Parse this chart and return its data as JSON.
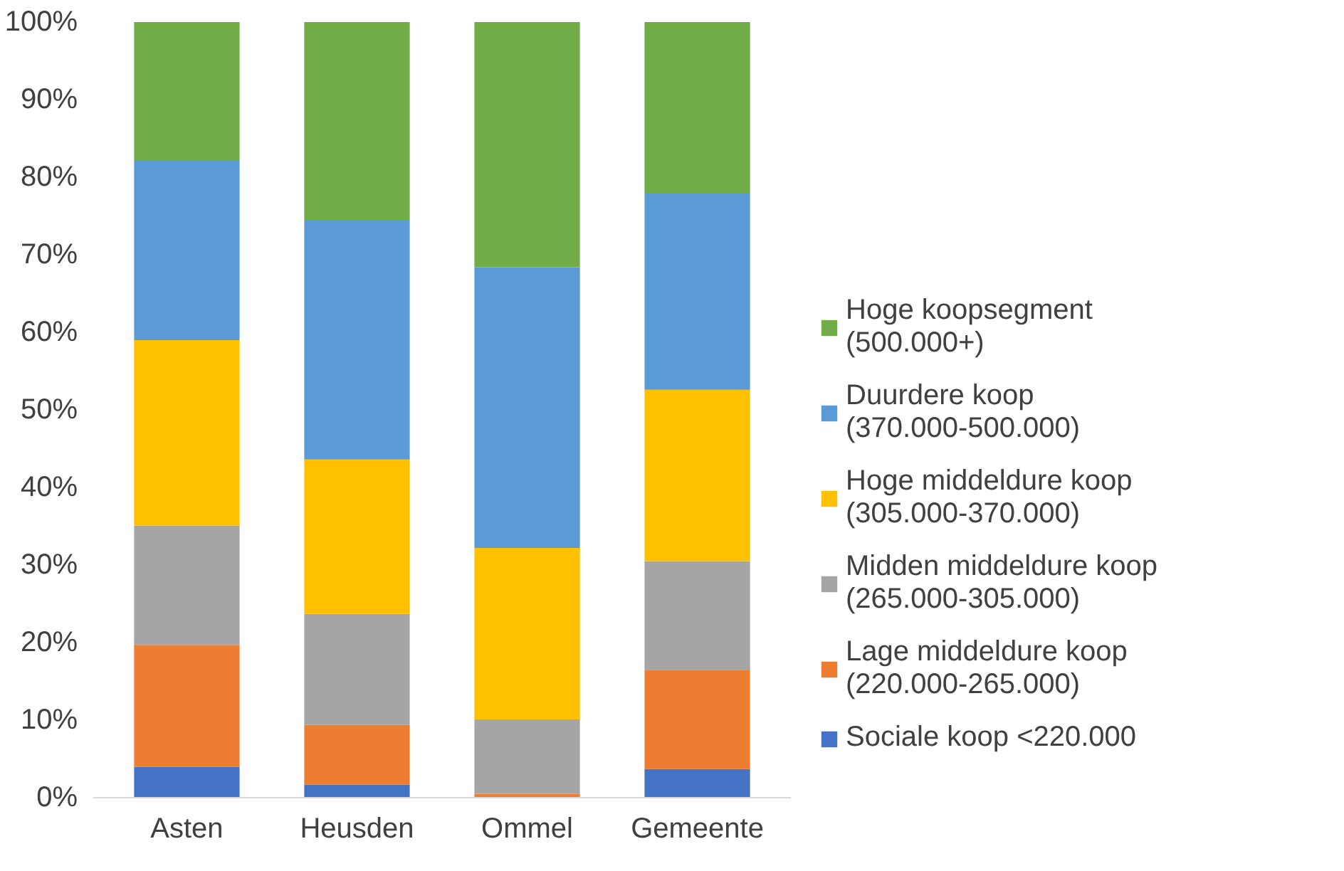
{
  "chart_data": {
    "type": "bar",
    "stacked": true,
    "categories": [
      "Asten",
      "Heusden",
      "Ommel",
      "Gemeente"
    ],
    "series": [
      {
        "name": "Sociale koop <220.000",
        "color": "#4472c4",
        "values": [
          4.0,
          1.7,
          0,
          3.7
        ]
      },
      {
        "name": "Lage middeldure koop (220.000-265.000)",
        "color": "#ed7d31",
        "values": [
          15.7,
          7.7,
          0.5,
          12.8
        ]
      },
      {
        "name": "Midden middeldure koop (265.000-305.000)",
        "color": "#a5a5a5",
        "values": [
          15.4,
          14.3,
          9.6,
          14.0
        ]
      },
      {
        "name": "Hoge middeldure koop (305.000-370.000)",
        "color": "#ffc000",
        "values": [
          23.9,
          19.9,
          22.1,
          22.1
        ]
      },
      {
        "name": "Duurdere koop (370.000-500.000)",
        "color": "#5b9bd5",
        "values": [
          23.2,
          30.8,
          36.2,
          25.3
        ]
      },
      {
        "name": "Hoge koopsegment (500.000+)",
        "color": "#70ad47",
        "values": [
          17.8,
          25.6,
          31.6,
          22.1
        ]
      }
    ],
    "ylim": [
      0,
      100
    ],
    "yticks": [
      {
        "value": 0,
        "label": "0%"
      },
      {
        "value": 10,
        "label": "10%"
      },
      {
        "value": 20,
        "label": "20%"
      },
      {
        "value": 30,
        "label": "30%"
      },
      {
        "value": 40,
        "label": "40%"
      },
      {
        "value": 50,
        "label": "50%"
      },
      {
        "value": 60,
        "label": "60%"
      },
      {
        "value": 70,
        "label": "70%"
      },
      {
        "value": 80,
        "label": "80%"
      },
      {
        "value": 90,
        "label": "90%"
      },
      {
        "value": 100,
        "label": "100%"
      }
    ],
    "grid": false,
    "legend": "right"
  }
}
